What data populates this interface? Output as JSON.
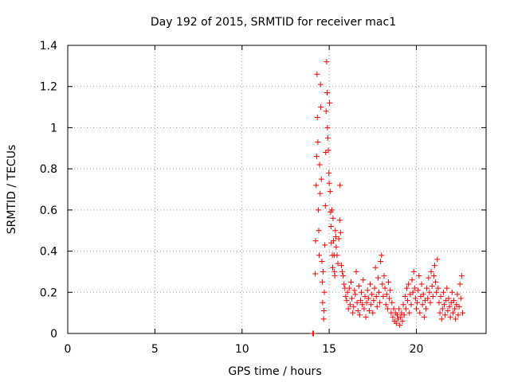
{
  "chart_data": {
    "type": "scatter",
    "title": "Day 192 of 2015, SRMTID for receiver mac1",
    "xlabel": "GPS time / hours",
    "ylabel": "SRMTID / TECUs",
    "xlim": [
      0,
      24
    ],
    "ylim": [
      0,
      1.4
    ],
    "xticks": [
      "0",
      "5",
      "10",
      "15",
      "20"
    ],
    "yticks": [
      "0",
      "0.2",
      "0.4",
      "0.6",
      "0.8",
      "1",
      "1.2",
      "1.4"
    ],
    "grid": true,
    "marker": "plus",
    "color": "#ff0000",
    "series": [
      {
        "name": "SRMTID",
        "points": [
          [
            14.05,
            0.0
          ],
          [
            14.1,
            0.0
          ],
          [
            14.2,
            0.29
          ],
          [
            14.22,
            0.45
          ],
          [
            14.25,
            0.72
          ],
          [
            14.28,
            0.86
          ],
          [
            14.3,
            1.26
          ],
          [
            14.32,
            1.05
          ],
          [
            14.35,
            0.93
          ],
          [
            14.38,
            0.6
          ],
          [
            14.4,
            0.5
          ],
          [
            14.42,
            0.38
          ],
          [
            14.45,
            0.82
          ],
          [
            14.48,
            0.68
          ],
          [
            14.5,
            1.21
          ],
          [
            14.52,
            1.1
          ],
          [
            14.55,
            0.75
          ],
          [
            14.58,
            0.35
          ],
          [
            14.6,
            0.25
          ],
          [
            14.62,
            0.15
          ],
          [
            14.65,
            0.3
          ],
          [
            14.68,
            0.07
          ],
          [
            14.7,
            0.11
          ],
          [
            14.72,
            0.2
          ],
          [
            14.75,
            0.43
          ],
          [
            14.78,
            0.62
          ],
          [
            14.8,
            0.88
          ],
          [
            14.82,
            1.08
          ],
          [
            14.85,
            1.32
          ],
          [
            14.88,
            1.17
          ],
          [
            14.9,
            1.0
          ],
          [
            14.92,
            0.95
          ],
          [
            14.95,
            0.89
          ],
          [
            14.98,
            0.78
          ],
          [
            15.0,
            0.73
          ],
          [
            15.02,
            1.12
          ],
          [
            15.05,
            0.69
          ],
          [
            15.08,
            0.59
          ],
          [
            15.1,
            0.52
          ],
          [
            15.12,
            0.44
          ],
          [
            15.15,
            0.6
          ],
          [
            15.18,
            0.38
          ],
          [
            15.2,
            0.32
          ],
          [
            15.22,
            0.56
          ],
          [
            15.25,
            0.45
          ],
          [
            15.28,
            0.38
          ],
          [
            15.3,
            0.3
          ],
          [
            15.32,
            0.28
          ],
          [
            15.35,
            0.5
          ],
          [
            15.38,
            0.47
          ],
          [
            15.4,
            0.42
          ],
          [
            15.45,
            0.38
          ],
          [
            15.5,
            0.34
          ],
          [
            15.55,
            0.46
          ],
          [
            15.6,
            0.55
          ],
          [
            15.62,
            0.72
          ],
          [
            15.65,
            0.49
          ],
          [
            15.7,
            0.33
          ],
          [
            15.75,
            0.3
          ],
          [
            15.8,
            0.28
          ],
          [
            15.85,
            0.24
          ],
          [
            15.9,
            0.22
          ],
          [
            15.95,
            0.18
          ],
          [
            16.0,
            0.16
          ],
          [
            16.05,
            0.2
          ],
          [
            16.1,
            0.12
          ],
          [
            16.15,
            0.22
          ],
          [
            16.2,
            0.14
          ],
          [
            16.25,
            0.25
          ],
          [
            16.3,
            0.17
          ],
          [
            16.35,
            0.1
          ],
          [
            16.4,
            0.13
          ],
          [
            16.45,
            0.21
          ],
          [
            16.5,
            0.19
          ],
          [
            16.55,
            0.3
          ],
          [
            16.6,
            0.15
          ],
          [
            16.65,
            0.11
          ],
          [
            16.7,
            0.23
          ],
          [
            16.75,
            0.09
          ],
          [
            16.8,
            0.16
          ],
          [
            16.85,
            0.2
          ],
          [
            16.9,
            0.14
          ],
          [
            16.95,
            0.26
          ],
          [
            17.0,
            0.12
          ],
          [
            17.05,
            0.18
          ],
          [
            17.1,
            0.08
          ],
          [
            17.15,
            0.15
          ],
          [
            17.2,
            0.21
          ],
          [
            17.25,
            0.17
          ],
          [
            17.3,
            0.11
          ],
          [
            17.35,
            0.24
          ],
          [
            17.4,
            0.14
          ],
          [
            17.45,
            0.19
          ],
          [
            17.5,
            0.1
          ],
          [
            17.55,
            0.16
          ],
          [
            17.6,
            0.22
          ],
          [
            17.65,
            0.32
          ],
          [
            17.7,
            0.18
          ],
          [
            17.75,
            0.13
          ],
          [
            17.8,
            0.27
          ],
          [
            17.85,
            0.2
          ],
          [
            17.9,
            0.15
          ],
          [
            17.95,
            0.35
          ],
          [
            18.0,
            0.38
          ],
          [
            18.05,
            0.24
          ],
          [
            18.1,
            0.18
          ],
          [
            18.15,
            0.28
          ],
          [
            18.2,
            0.22
          ],
          [
            18.25,
            0.14
          ],
          [
            18.3,
            0.19
          ],
          [
            18.35,
            0.12
          ],
          [
            18.4,
            0.25
          ],
          [
            18.45,
            0.17
          ],
          [
            18.5,
            0.21
          ],
          [
            18.55,
            0.1
          ],
          [
            18.6,
            0.15
          ],
          [
            18.65,
            0.08
          ],
          [
            18.7,
            0.12
          ],
          [
            18.75,
            0.06
          ],
          [
            18.8,
            0.1
          ],
          [
            18.85,
            0.05
          ],
          [
            18.9,
            0.09
          ],
          [
            18.95,
            0.07
          ],
          [
            19.0,
            0.12
          ],
          [
            19.05,
            0.04
          ],
          [
            19.1,
            0.08
          ],
          [
            19.15,
            0.1
          ],
          [
            19.2,
            0.06
          ],
          [
            19.25,
            0.14
          ],
          [
            19.3,
            0.09
          ],
          [
            19.35,
            0.18
          ],
          [
            19.4,
            0.12
          ],
          [
            19.45,
            0.22
          ],
          [
            19.5,
            0.16
          ],
          [
            19.55,
            0.24
          ],
          [
            19.6,
            0.1
          ],
          [
            19.65,
            0.19
          ],
          [
            19.7,
            0.14
          ],
          [
            19.75,
            0.26
          ],
          [
            19.8,
            0.2
          ],
          [
            19.85,
            0.3
          ],
          [
            19.9,
            0.22
          ],
          [
            19.95,
            0.17
          ],
          [
            20.0,
            0.12
          ],
          [
            20.05,
            0.15
          ],
          [
            20.1,
            0.21
          ],
          [
            20.15,
            0.28
          ],
          [
            20.2,
            0.1
          ],
          [
            20.25,
            0.18
          ],
          [
            20.3,
            0.24
          ],
          [
            20.35,
            0.14
          ],
          [
            20.4,
            0.19
          ],
          [
            20.45,
            0.08
          ],
          [
            20.5,
            0.16
          ],
          [
            20.55,
            0.12
          ],
          [
            20.6,
            0.22
          ],
          [
            20.65,
            0.17
          ],
          [
            20.7,
            0.27
          ],
          [
            20.75,
            0.2
          ],
          [
            20.8,
            0.15
          ],
          [
            20.85,
            0.3
          ],
          [
            20.9,
            0.23
          ],
          [
            20.95,
            0.18
          ],
          [
            21.0,
            0.28
          ],
          [
            21.05,
            0.33
          ],
          [
            21.1,
            0.25
          ],
          [
            21.15,
            0.2
          ],
          [
            21.2,
            0.36
          ],
          [
            21.25,
            0.22
          ],
          [
            21.3,
            0.15
          ],
          [
            21.35,
            0.1
          ],
          [
            21.4,
            0.18
          ],
          [
            21.45,
            0.07
          ],
          [
            21.5,
            0.12
          ],
          [
            21.55,
            0.2
          ],
          [
            21.6,
            0.14
          ],
          [
            21.65,
            0.09
          ],
          [
            21.7,
            0.16
          ],
          [
            21.75,
            0.22
          ],
          [
            21.8,
            0.11
          ],
          [
            21.85,
            0.17
          ],
          [
            21.9,
            0.13
          ],
          [
            21.95,
            0.08
          ],
          [
            22.0,
            0.15
          ],
          [
            22.05,
            0.2
          ],
          [
            22.1,
            0.1
          ],
          [
            22.15,
            0.16
          ],
          [
            22.2,
            0.12
          ],
          [
            22.25,
            0.07
          ],
          [
            22.3,
            0.14
          ],
          [
            22.35,
            0.19
          ],
          [
            22.4,
            0.09
          ],
          [
            22.45,
            0.13
          ],
          [
            22.5,
            0.24
          ],
          [
            22.55,
            0.17
          ],
          [
            22.6,
            0.28
          ],
          [
            22.65,
            0.1
          ]
        ]
      }
    ]
  }
}
